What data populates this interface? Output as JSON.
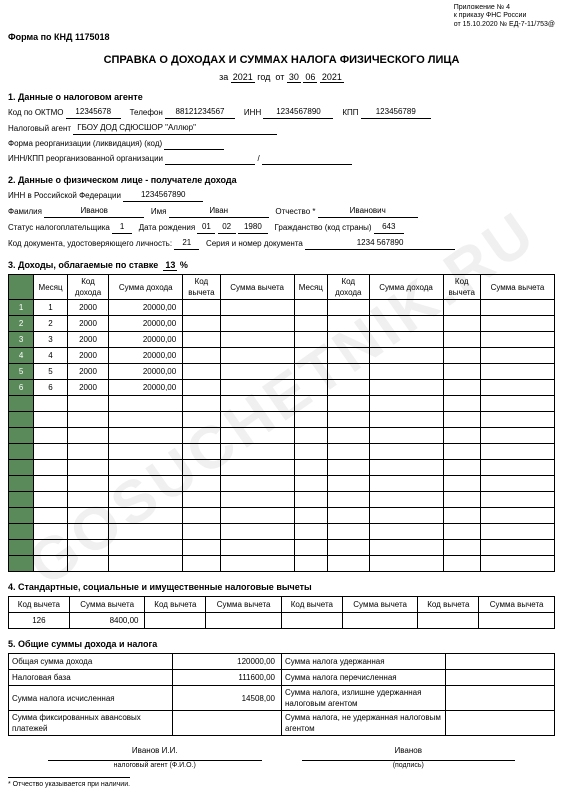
{
  "header": {
    "appendix": "Приложение № 4",
    "order": "к приказу ФНС России",
    "date": "от 15.10.2020 № ЕД-7-11/753@",
    "form_code": "Форма по КНД 1175018",
    "title": "СПРАВКА О ДОХОДАХ И СУММАХ НАЛОГА ФИЗИЧЕСКОГО ЛИЦА",
    "year": "2021",
    "day": "30",
    "month": "06",
    "year2": "2021"
  },
  "s1": {
    "title": "1. Данные о налоговом агенте",
    "oktmo_lbl": "Код по ОКТМО",
    "oktmo": "12345678",
    "tel_lbl": "Телефон",
    "tel": "88121234567",
    "inn_lbl": "ИНН",
    "inn": "1234567890",
    "kpp_lbl": "КПП",
    "kpp": "123456789",
    "agent_lbl": "Налоговый агент",
    "agent": "ГБОУ ДОД СДЮСШОР \"Аллюр\"",
    "reorg_lbl": "Форма реорганизации (ликвидация) (код)",
    "innkpp_lbl": "ИНН/КПП реорганизованной организации"
  },
  "s2": {
    "title": "2. Данные о физическом лице - получателе дохода",
    "innrf_lbl": "ИНН в Российской Федерации",
    "innrf": "1234567890",
    "fam_lbl": "Фамилия",
    "fam": "Иванов",
    "name_lbl": "Имя",
    "name": "Иван",
    "otch_lbl": "Отчество *",
    "otch": "Иванович",
    "status_lbl": "Статус налогоплательщика",
    "status": "1",
    "birth_lbl": "Дата рождения",
    "bd": "01",
    "bm": "02",
    "by": "1980",
    "citizen_lbl": "Гражданство (код страны)",
    "citizen": "643",
    "doc_lbl": "Код документа, удостоверяющего личность:",
    "doc": "21",
    "ser_lbl": "Серия и номер документа",
    "ser": "1234 567890"
  },
  "s3": {
    "title": "3. Доходы, облагаемые по ставке",
    "rate": "13",
    "cols": [
      "Месяц",
      "Код дохода",
      "Сумма дохода",
      "Код вычета",
      "Сумма вычета"
    ],
    "rows": [
      [
        "1",
        "2000",
        "20000,00",
        "",
        ""
      ],
      [
        "2",
        "2000",
        "20000,00",
        "",
        ""
      ],
      [
        "3",
        "2000",
        "20000,00",
        "",
        ""
      ],
      [
        "4",
        "2000",
        "20000,00",
        "",
        ""
      ],
      [
        "5",
        "2000",
        "20000,00",
        "",
        ""
      ],
      [
        "6",
        "2000",
        "20000,00",
        "",
        ""
      ]
    ],
    "empty_rows": 11
  },
  "s4": {
    "title": "4. Стандартные, социальные и имущественные налоговые вычеты",
    "cols": [
      "Код вычета",
      "Сумма вычета"
    ],
    "rows": [
      [
        "126",
        "8400,00",
        "",
        "",
        "",
        "",
        "",
        ""
      ]
    ]
  },
  "s5": {
    "title": "5. Общие суммы дохода и налога",
    "left": [
      [
        "Общая сумма дохода",
        "120000,00"
      ],
      [
        "Налоговая база",
        "111600,00"
      ],
      [
        "Сумма налога исчисленная",
        "14508,00"
      ],
      [
        "Сумма фиксированных авансовых платежей",
        ""
      ]
    ],
    "right": [
      [
        "Сумма налога удержанная",
        ""
      ],
      [
        "Сумма налога перечисленная",
        ""
      ],
      [
        "Сумма налога, излишне удержанная налоговым агентом",
        ""
      ],
      [
        "Сумма налога, не удержанная налоговым агентом",
        ""
      ]
    ]
  },
  "sig": {
    "agent": "Иванов И.И.",
    "agent_lbl": "налоговый агент (Ф.И.О.)",
    "sign": "Иванов",
    "sign_lbl": "(подпись)"
  },
  "footnote": "* Отчество указывается при наличии.",
  "watermark": "GOSUCHETNIK.RU"
}
